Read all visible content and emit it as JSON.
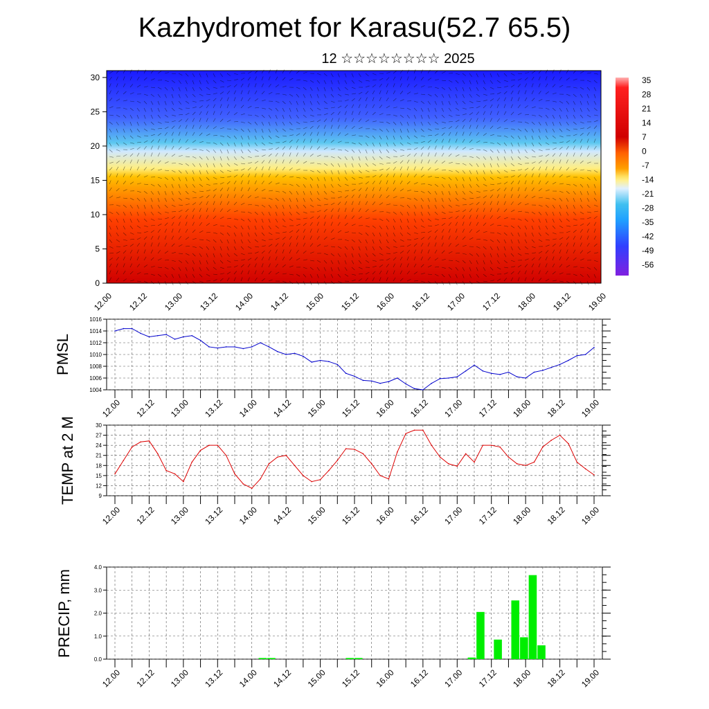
{
  "header": {
    "title": "Kazhydromet for Karasu(52.7 65.5)",
    "subtitle": "12 ☆☆☆☆☆☆☆☆ 2025"
  },
  "chart_data": [
    {
      "type": "heatmap",
      "name": "cross-section",
      "y_ticks": [
        "0",
        "5",
        "10",
        "15",
        "20",
        "25",
        "30"
      ],
      "ylim": [
        0,
        31
      ],
      "x_ticks": [
        "12.00",
        "12.12",
        "13.00",
        "13.12",
        "14.00",
        "14.12",
        "15.00",
        "15.12",
        "16.00",
        "16.12",
        "17.00",
        "17.12",
        "18.00",
        "18.12",
        "19.00"
      ],
      "colorbar_labels": [
        "35",
        "28",
        "21",
        "14",
        "7",
        "0",
        "-7",
        "-14",
        "-21",
        "-28",
        "-35",
        "-42",
        "-49",
        "-56"
      ],
      "colors": {
        "hot": "#d00000",
        "warm": "#ff8c00",
        "mild": "#ffee80",
        "cool": "#5cc8f0",
        "cold": "#1a1aff"
      }
    },
    {
      "type": "line",
      "name": "pmsl",
      "ylabel": "PMSL",
      "ylim": [
        1004,
        1016
      ],
      "y_ticks": [
        "1004",
        "1006",
        "1008",
        "1010",
        "1012",
        "1014",
        "1016"
      ],
      "x_ticks": [
        "12.00",
        "12.12",
        "13.00",
        "13.12",
        "14.00",
        "14.12",
        "15.00",
        "15.12",
        "16.00",
        "16.12",
        "17.00",
        "17.12",
        "18.00",
        "18.12",
        "19.00"
      ],
      "color": "#0000cc",
      "values": [
        1014.0,
        1014.4,
        1014.4,
        1013.6,
        1013.0,
        1013.2,
        1013.4,
        1012.6,
        1013.0,
        1013.2,
        1012.4,
        1011.3,
        1011.1,
        1011.3,
        1011.3,
        1011.0,
        1011.3,
        1012.0,
        1011.3,
        1010.5,
        1010.0,
        1010.2,
        1009.7,
        1008.7,
        1009.0,
        1008.8,
        1008.3,
        1006.8,
        1006.3,
        1005.6,
        1005.5,
        1005.1,
        1005.4,
        1006.0,
        1005.0,
        1004.2,
        1004.0,
        1005.1,
        1005.9,
        1006.0,
        1006.2,
        1007.2,
        1008.2,
        1007.2,
        1006.8,
        1006.6,
        1007.0,
        1006.2,
        1006.0,
        1007.0,
        1007.3,
        1007.8,
        1008.3,
        1009.0,
        1009.8,
        1010.0,
        1011.2
      ]
    },
    {
      "type": "line",
      "name": "temperature",
      "ylabel": "TEMP at 2 M",
      "ylim": [
        9,
        30
      ],
      "y_ticks": [
        "9",
        "12",
        "15",
        "18",
        "21",
        "24",
        "27",
        "30"
      ],
      "x_ticks": [
        "12.00",
        "12.12",
        "13.00",
        "13.12",
        "14.00",
        "14.12",
        "15.00",
        "15.12",
        "16.00",
        "16.12",
        "17.00",
        "17.12",
        "18.00",
        "18.12",
        "19.00"
      ],
      "color": "#dd0000",
      "values": [
        15.5,
        19.5,
        23.5,
        25.0,
        25.3,
        21.5,
        16.5,
        15.5,
        13.2,
        19.0,
        22.5,
        24.0,
        24.0,
        21.0,
        15.5,
        12.5,
        11.2,
        14.0,
        18.5,
        20.5,
        21.0,
        18.0,
        15.0,
        13.2,
        13.8,
        16.5,
        19.5,
        23.0,
        22.8,
        21.5,
        18.5,
        15.0,
        14.0,
        22.0,
        27.5,
        28.5,
        28.5,
        24.0,
        20.5,
        18.5,
        17.8,
        21.5,
        19.0,
        24.0,
        24.0,
        23.5,
        20.5,
        18.5,
        18.0,
        19.0,
        23.5,
        25.5,
        27.0,
        24.5,
        19.0,
        17.0,
        15.2
      ]
    },
    {
      "type": "bar",
      "name": "precipitation",
      "ylabel": "PRECIP, mm",
      "ylim": [
        0,
        4
      ],
      "y_ticks": [
        "0.0",
        "1.0",
        "2.0",
        "3.0",
        "4.0"
      ],
      "x_ticks": [
        "12.00",
        "12.12",
        "13.00",
        "13.12",
        "14.00",
        "14.12",
        "15.00",
        "15.12",
        "16.00",
        "16.12",
        "17.00",
        "17.12",
        "18.00",
        "18.12",
        "19.00"
      ],
      "color": "#00ee00",
      "values": [
        0,
        0,
        0,
        0,
        0,
        0,
        0,
        0,
        0,
        0,
        0,
        0,
        0,
        0,
        0,
        0,
        0,
        0.05,
        0.05,
        0,
        0,
        0,
        0,
        0,
        0,
        0,
        0,
        0.05,
        0.05,
        0,
        0,
        0,
        0,
        0,
        0,
        0,
        0,
        0,
        0,
        0,
        0,
        0.07,
        2.05,
        0,
        0.85,
        0,
        2.55,
        0.95,
        3.65,
        0.6,
        0,
        0,
        0,
        0,
        0,
        0
      ]
    }
  ]
}
